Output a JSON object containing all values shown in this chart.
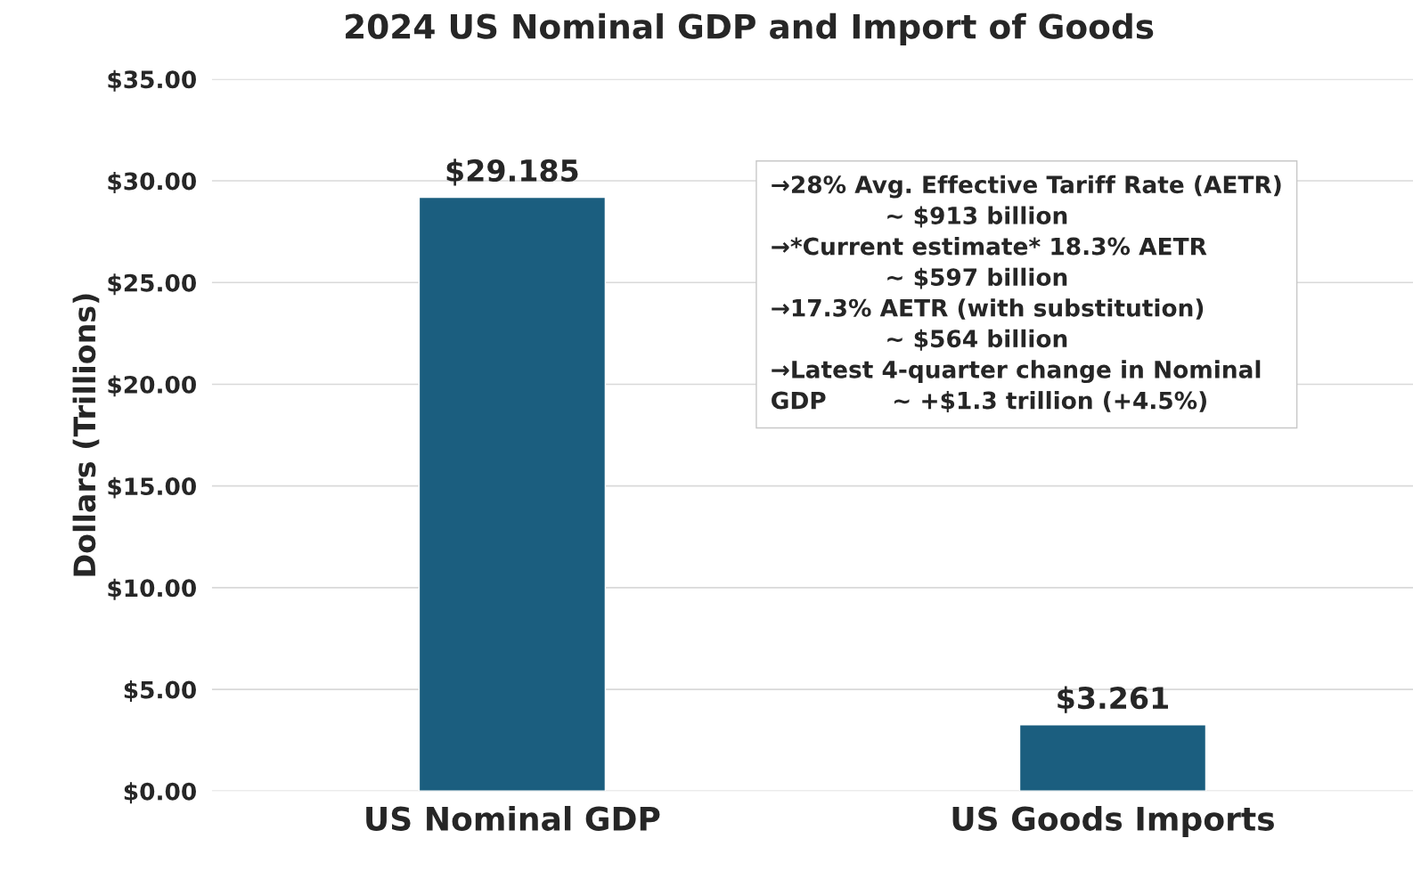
{
  "chart_data": {
    "type": "bar",
    "title": "2024 US Nominal GDP and Import of Goods",
    "ylabel": "Dollars (Trillions)",
    "categories": [
      "US Nominal GDP",
      "US Goods Imports"
    ],
    "values": [
      29.185,
      3.261
    ],
    "value_labels": [
      "$29.185",
      "$3.261"
    ],
    "color": "#1b5e7f",
    "ylim": [
      0,
      35
    ],
    "yticks": [
      {
        "value": 0,
        "label": "$0.00"
      },
      {
        "value": 5,
        "label": "$5.00"
      },
      {
        "value": 10,
        "label": "$10.00"
      },
      {
        "value": 15,
        "label": "$15.00"
      },
      {
        "value": 20,
        "label": "$20.00"
      },
      {
        "value": 25,
        "label": "$25.00"
      },
      {
        "value": 30,
        "label": "$30.00"
      },
      {
        "value": 35,
        "label": "$35.00"
      }
    ],
    "grid": "y",
    "legend": false,
    "annotations": [
      "→28% Avg. Effective Tariff Rate (AETR)\n              ~ $913 billion",
      "→*Current estimate* 18.3% AETR\n              ~ $597 billion",
      "→17.3% AETR (with substitution)\n              ~ $564 billion",
      "→Latest 4-quarter change in Nominal\nGDP        ~ +$1.3 trillion (+4.5%)"
    ]
  }
}
